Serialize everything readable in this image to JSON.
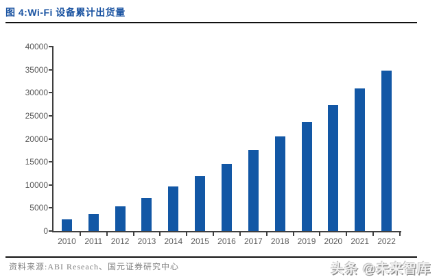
{
  "title": "图 4:Wi-Fi 设备累计出货量",
  "chart_data": {
    "type": "bar",
    "title": "图 4:Wi-Fi 设备累计出货量",
    "categories": [
      "2010",
      "2011",
      "2012",
      "2013",
      "2014",
      "2015",
      "2016",
      "2017",
      "2018",
      "2019",
      "2020",
      "2021",
      "2022"
    ],
    "values": [
      2600,
      3700,
      5400,
      7100,
      9700,
      11900,
      14500,
      17500,
      20500,
      23700,
      27300,
      31000,
      34800
    ],
    "xlabel": "",
    "ylabel": "",
    "ylim": [
      0,
      40000
    ],
    "yticks": [
      40000,
      35000,
      30000,
      25000,
      20000,
      15000,
      10000,
      5000,
      0
    ],
    "grid": false,
    "legend_position": "none",
    "bar_color": "#1257a5"
  },
  "footer": {
    "source": "资料来源:ABI Reseach、国元证券研究中心",
    "watermark": "头条 @未来智库"
  },
  "colors": {
    "title_text": "#1a53a1",
    "bar": "#1257a5",
    "axis": "#3f3f3f",
    "tick_label": "#595959",
    "divider": "#111111",
    "source_text": "#808080",
    "watermark_text": "#f2f2f2"
  }
}
